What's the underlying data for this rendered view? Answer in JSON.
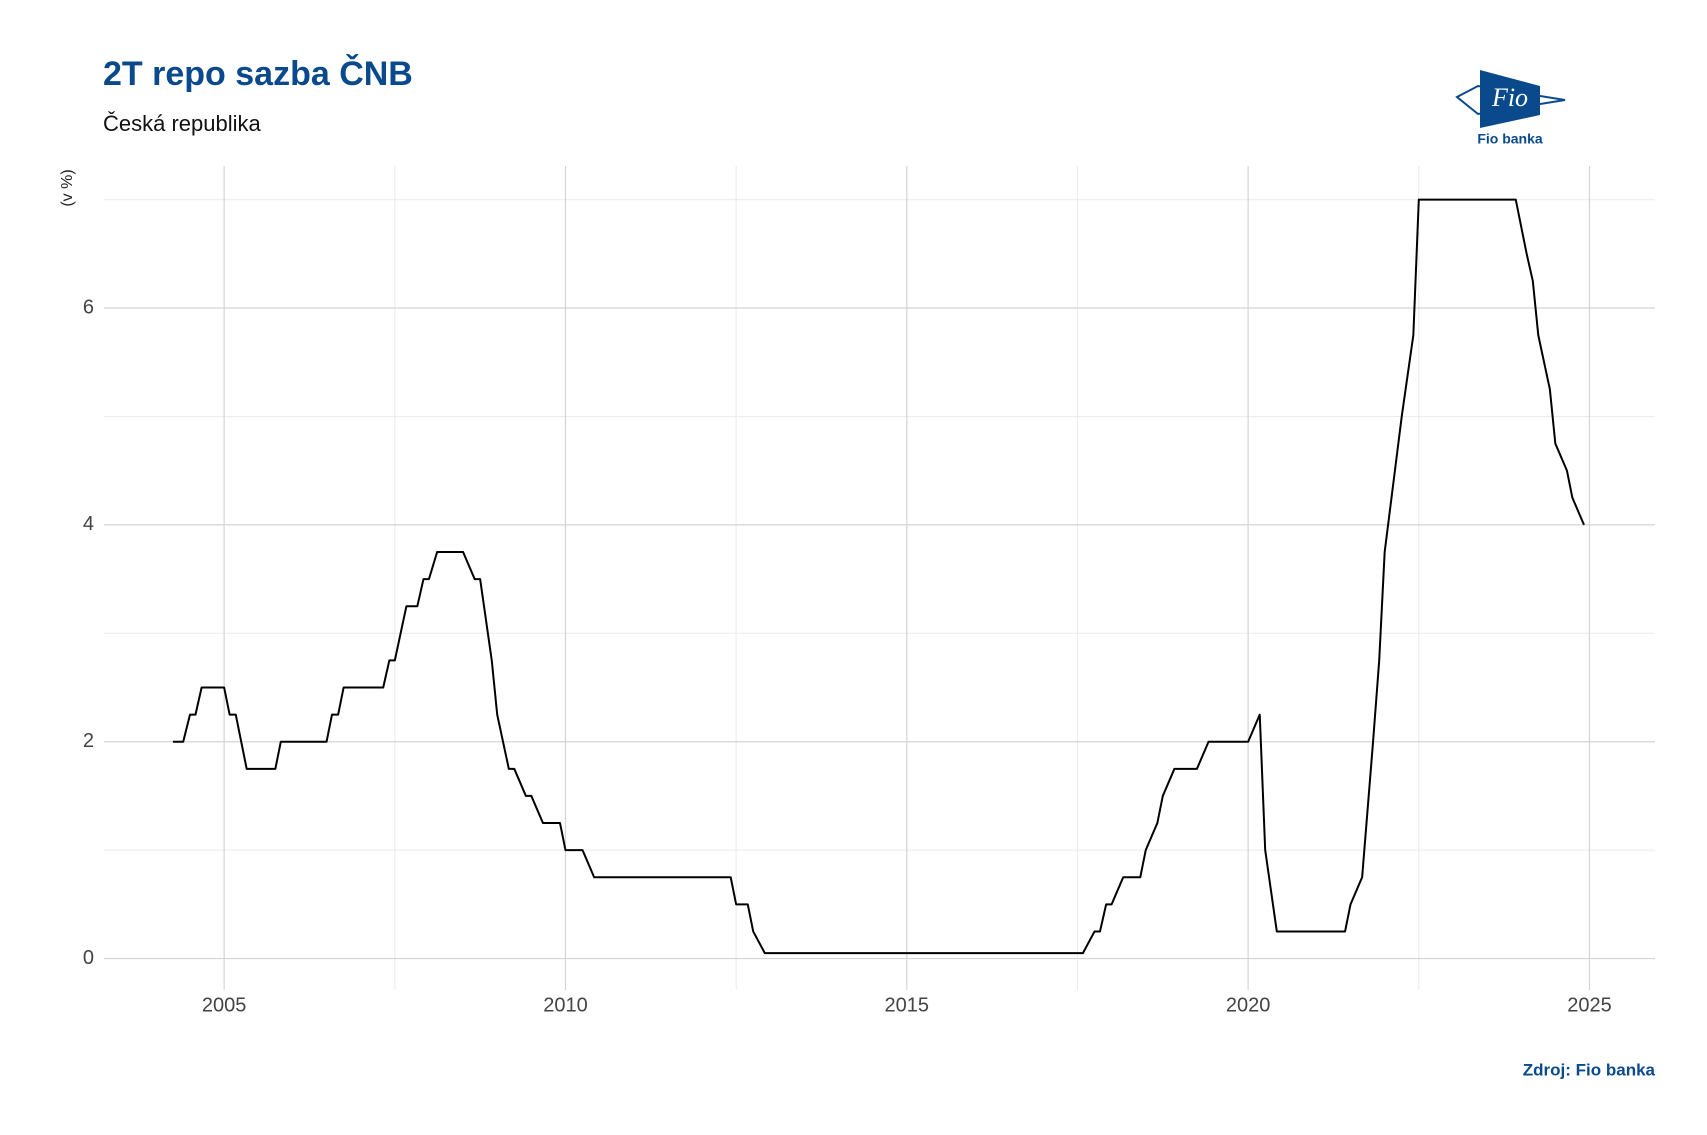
{
  "chart_data": {
    "type": "line",
    "title": "2T repo sazba ČNB",
    "subtitle": "Česká republika",
    "y_label": "(v %)",
    "source": "Zdroj: Fio banka",
    "logo": {
      "text": "Fio",
      "caption": "Fio banka"
    },
    "color": "#000000",
    "grid": true,
    "x": [
      2004.25,
      2004.4,
      2004.5,
      2004.58,
      2004.67,
      2005.0,
      2005.08,
      2005.17,
      2005.25,
      2005.33,
      2005.75,
      2005.83,
      2006.5,
      2006.58,
      2006.67,
      2006.75,
      2007.33,
      2007.42,
      2007.5,
      2007.67,
      2007.83,
      2007.92,
      2008.0,
      2008.12,
      2008.5,
      2008.67,
      2008.75,
      2008.92,
      2009.0,
      2009.17,
      2009.25,
      2009.42,
      2009.5,
      2009.67,
      2009.92,
      2010.0,
      2010.25,
      2010.42,
      2012.42,
      2012.5,
      2012.67,
      2012.75,
      2012.92,
      2017.58,
      2017.75,
      2017.83,
      2017.92,
      2018.0,
      2018.17,
      2018.42,
      2018.5,
      2018.67,
      2018.75,
      2018.92,
      2019.25,
      2019.42,
      2020.0,
      2020.17,
      2020.25,
      2020.42,
      2021.42,
      2021.5,
      2021.67,
      2021.83,
      2021.92,
      2022.0,
      2022.25,
      2022.42,
      2022.5,
      2023.92,
      2024.08,
      2024.17,
      2024.25,
      2024.42,
      2024.5,
      2024.67,
      2024.75,
      2024.92
    ],
    "values": [
      2.0,
      2.0,
      2.25,
      2.25,
      2.5,
      2.5,
      2.25,
      2.25,
      2.0,
      1.75,
      1.75,
      2.0,
      2.0,
      2.25,
      2.25,
      2.5,
      2.5,
      2.75,
      2.75,
      3.25,
      3.25,
      3.5,
      3.5,
      3.75,
      3.75,
      3.5,
      3.5,
      2.75,
      2.25,
      1.75,
      1.75,
      1.5,
      1.5,
      1.25,
      1.25,
      1.0,
      1.0,
      0.75,
      0.75,
      0.5,
      0.5,
      0.25,
      0.05,
      0.05,
      0.25,
      0.25,
      0.5,
      0.5,
      0.75,
      0.75,
      1.0,
      1.25,
      1.5,
      1.75,
      1.75,
      2.0,
      2.0,
      2.25,
      1.0,
      0.25,
      0.25,
      0.5,
      0.75,
      2.0,
      2.75,
      3.75,
      5.0,
      5.75,
      7.0,
      7.0,
      6.5,
      6.25,
      5.75,
      5.25,
      4.75,
      4.5,
      4.25,
      4.0
    ],
    "xlim": [
      2003.24,
      2025.96
    ],
    "xticks": [
      2005,
      2010,
      2015,
      2020,
      2025
    ],
    "ylim": [
      -0.29,
      7.31
    ],
    "yticks": [
      0,
      2,
      4,
      6
    ]
  }
}
